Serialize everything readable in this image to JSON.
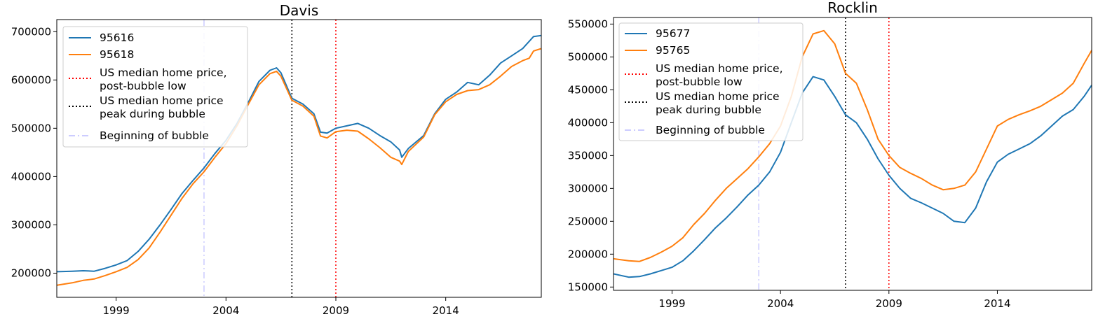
{
  "chart_data": [
    {
      "type": "line",
      "title": "Davis",
      "xlabel": "",
      "ylabel": "",
      "xlim": [
        1996.3,
        2018.35
      ],
      "ylim": [
        150000,
        725000
      ],
      "xticks": [
        1999,
        2004,
        2009,
        2014
      ],
      "xtick_labels": [
        "1999",
        "2004",
        "2009",
        "2014"
      ],
      "yticks": [
        200000,
        300000,
        400000,
        500000,
        600000,
        700000
      ],
      "ytick_labels": [
        "200000",
        "300000",
        "400000",
        "500000",
        "600000",
        "700000"
      ],
      "grid": false,
      "legend_position": "upper-left",
      "series": [
        {
          "name": "95616",
          "color": "#1f77b4",
          "x": [
            1996.3,
            1997.0,
            1997.5,
            1998.0,
            1998.5,
            1999.0,
            1999.5,
            2000.0,
            2000.5,
            2001.0,
            2001.5,
            2002.0,
            2002.5,
            2003.0,
            2003.5,
            2004.0,
            2004.5,
            2005.0,
            2005.5,
            2006.0,
            2006.3,
            2006.5,
            2007.0,
            2007.5,
            2008.0,
            2008.3,
            2008.6,
            2009.0,
            2009.5,
            2010.0,
            2010.5,
            2011.0,
            2011.5,
            2011.9,
            2012.0,
            2012.3,
            2013.0,
            2013.5,
            2014.0,
            2014.5,
            2015.0,
            2015.5,
            2016.0,
            2016.5,
            2017.0,
            2017.5,
            2017.8,
            2018.0,
            2018.35
          ],
          "y": [
            203000,
            204000,
            205000,
            204000,
            210000,
            217000,
            226000,
            245000,
            270000,
            300000,
            332000,
            365000,
            392000,
            418000,
            448000,
            475000,
            510000,
            552000,
            597000,
            620000,
            625000,
            615000,
            562000,
            550000,
            530000,
            492000,
            490000,
            500000,
            505000,
            510000,
            500000,
            485000,
            472000,
            455000,
            440000,
            458000,
            485000,
            530000,
            560000,
            575000,
            595000,
            590000,
            610000,
            635000,
            650000,
            665000,
            680000,
            690000,
            692000
          ]
        },
        {
          "name": "95618",
          "color": "#ff7f0e",
          "x": [
            1996.3,
            1997.0,
            1997.5,
            1998.0,
            1998.5,
            1999.0,
            1999.5,
            2000.0,
            2000.5,
            2001.0,
            2001.5,
            2002.0,
            2002.5,
            2003.0,
            2003.5,
            2004.0,
            2004.5,
            2005.0,
            2005.5,
            2006.0,
            2006.3,
            2006.5,
            2007.0,
            2007.5,
            2008.0,
            2008.3,
            2008.6,
            2009.0,
            2009.5,
            2010.0,
            2010.5,
            2011.0,
            2011.5,
            2011.9,
            2012.0,
            2012.3,
            2013.0,
            2013.5,
            2014.0,
            2014.5,
            2015.0,
            2015.5,
            2016.0,
            2016.5,
            2017.0,
            2017.5,
            2017.8,
            2018.0,
            2018.35
          ],
          "y": [
            175000,
            180000,
            185000,
            188000,
            195000,
            203000,
            212000,
            228000,
            252000,
            285000,
            320000,
            355000,
            385000,
            410000,
            440000,
            468000,
            505000,
            548000,
            590000,
            613000,
            618000,
            608000,
            558000,
            546000,
            525000,
            484000,
            480000,
            493000,
            496000,
            494000,
            478000,
            460000,
            440000,
            432000,
            425000,
            452000,
            482000,
            528000,
            555000,
            570000,
            578000,
            580000,
            590000,
            608000,
            628000,
            640000,
            645000,
            660000,
            665000
          ]
        }
      ],
      "reference_lines": [
        {
          "name": "US median home price, post-bubble low",
          "x": 2009.0,
          "color": "#ff0000",
          "style": "dotted"
        },
        {
          "name": "US median home price peak during bubble",
          "x": 2007.0,
          "color": "#000000",
          "style": "dotted"
        },
        {
          "name": "Beginning of bubble",
          "x": 2003.0,
          "color": "#ccccff",
          "style": "dashdot"
        }
      ],
      "legend": [
        {
          "label": "95616",
          "color": "#1f77b4",
          "style": "solid"
        },
        {
          "label": "95618",
          "color": "#ff7f0e",
          "style": "solid"
        },
        {
          "label_lines": [
            "US median home price,",
            "post-bubble low"
          ],
          "color": "#ff0000",
          "style": "dotted"
        },
        {
          "label_lines": [
            "US median home price",
            "peak during bubble"
          ],
          "color": "#000000",
          "style": "dotted"
        },
        {
          "label": "Beginning of bubble",
          "color": "#ccccff",
          "style": "dashdot"
        }
      ]
    },
    {
      "type": "line",
      "title": "Rocklin",
      "xlabel": "",
      "ylabel": "",
      "xlim": [
        1996.3,
        2018.35
      ],
      "ylim": [
        145000,
        560000
      ],
      "xticks": [
        1999,
        2004,
        2009,
        2014
      ],
      "xtick_labels": [
        "1999",
        "2004",
        "2009",
        "2014"
      ],
      "yticks": [
        150000,
        200000,
        250000,
        300000,
        350000,
        400000,
        450000,
        500000,
        550000
      ],
      "ytick_labels": [
        "150000",
        "200000",
        "250000",
        "300000",
        "350000",
        "400000",
        "450000",
        "500000",
        "550000"
      ],
      "grid": false,
      "legend_position": "upper-left",
      "series": [
        {
          "name": "95677",
          "color": "#1f77b4",
          "x": [
            1996.3,
            1997.0,
            1997.5,
            1998.0,
            1998.5,
            1999.0,
            1999.5,
            2000.0,
            2000.5,
            2001.0,
            2001.5,
            2002.0,
            2002.5,
            2003.0,
            2003.5,
            2004.0,
            2004.5,
            2005.0,
            2005.5,
            2006.0,
            2006.5,
            2007.0,
            2007.5,
            2008.0,
            2008.5,
            2009.0,
            2009.5,
            2010.0,
            2010.5,
            2011.0,
            2011.5,
            2012.0,
            2012.5,
            2013.0,
            2013.5,
            2014.0,
            2014.5,
            2015.0,
            2015.5,
            2016.0,
            2016.5,
            2017.0,
            2017.5,
            2018.0,
            2018.35
          ],
          "y": [
            170000,
            165000,
            166000,
            170000,
            175000,
            180000,
            190000,
            205000,
            222000,
            240000,
            255000,
            272000,
            290000,
            305000,
            325000,
            355000,
            400000,
            445000,
            470000,
            465000,
            440000,
            412000,
            400000,
            375000,
            345000,
            320000,
            300000,
            285000,
            278000,
            270000,
            262000,
            250000,
            248000,
            270000,
            310000,
            340000,
            352000,
            360000,
            368000,
            380000,
            395000,
            410000,
            420000,
            440000,
            457000
          ]
        },
        {
          "name": "95765",
          "color": "#ff7f0e",
          "x": [
            1996.3,
            1997.0,
            1997.5,
            1998.0,
            1998.5,
            1999.0,
            1999.5,
            2000.0,
            2000.5,
            2001.0,
            2001.5,
            2002.0,
            2002.5,
            2003.0,
            2003.5,
            2004.0,
            2004.5,
            2005.0,
            2005.5,
            2006.0,
            2006.5,
            2007.0,
            2007.5,
            2008.0,
            2008.5,
            2009.0,
            2009.5,
            2010.0,
            2010.5,
            2011.0,
            2011.5,
            2012.0,
            2012.5,
            2013.0,
            2013.5,
            2014.0,
            2014.5,
            2015.0,
            2015.5,
            2016.0,
            2016.5,
            2017.0,
            2017.5,
            2018.0,
            2018.35
          ],
          "y": [
            193000,
            190000,
            189000,
            195000,
            203000,
            212000,
            225000,
            245000,
            262000,
            282000,
            300000,
            315000,
            330000,
            348000,
            368000,
            395000,
            440000,
            500000,
            535000,
            540000,
            520000,
            475000,
            460000,
            420000,
            375000,
            350000,
            332000,
            323000,
            315000,
            305000,
            298000,
            300000,
            305000,
            325000,
            360000,
            395000,
            405000,
            412000,
            418000,
            425000,
            435000,
            445000,
            460000,
            490000,
            510000
          ]
        }
      ],
      "reference_lines": [
        {
          "name": "US median home price, post-bubble low",
          "x": 2009.0,
          "color": "#ff0000",
          "style": "dotted"
        },
        {
          "name": "US median home price peak during bubble",
          "x": 2007.0,
          "color": "#000000",
          "style": "dotted"
        },
        {
          "name": "Beginning of bubble",
          "x": 2003.0,
          "color": "#ccccff",
          "style": "dashdot"
        }
      ],
      "legend": [
        {
          "label": "95677",
          "color": "#1f77b4",
          "style": "solid"
        },
        {
          "label": "95765",
          "color": "#ff7f0e",
          "style": "solid"
        },
        {
          "label_lines": [
            "US median home price,",
            "post-bubble low"
          ],
          "color": "#ff0000",
          "style": "dotted"
        },
        {
          "label_lines": [
            "US median home price",
            "peak during bubble"
          ],
          "color": "#000000",
          "style": "dotted"
        },
        {
          "label": "Beginning of bubble",
          "color": "#ccccff",
          "style": "dashdot"
        }
      ]
    }
  ]
}
